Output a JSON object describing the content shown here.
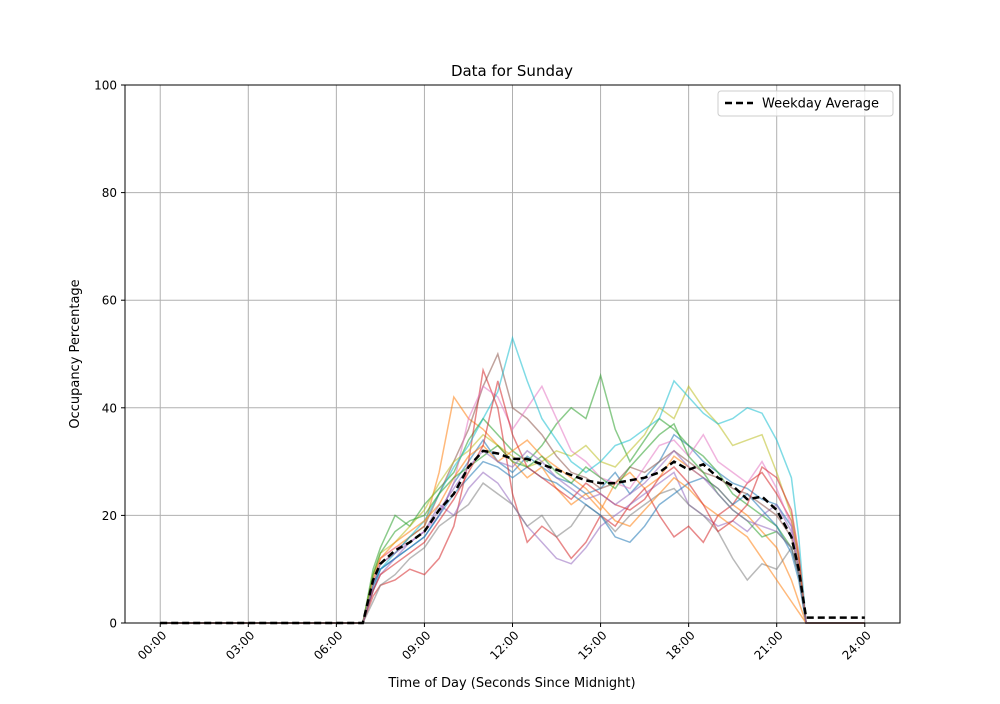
{
  "chart_data": {
    "type": "line",
    "title": "Data for Sunday",
    "xlabel": "Time of Day (Seconds Since Midnight)",
    "ylabel": "Occupancy Percentage",
    "xlim_hours": [
      -1.2,
      25.2
    ],
    "ylim": [
      0,
      100
    ],
    "x_ticks": [
      "00:00",
      "03:00",
      "06:00",
      "09:00",
      "12:00",
      "15:00",
      "18:00",
      "21:00",
      "24:00"
    ],
    "y_ticks": [
      0,
      20,
      40,
      60,
      80,
      100
    ],
    "grid": true,
    "legend": {
      "placement": "top-right",
      "entries": [
        "Weekday Average"
      ]
    },
    "x_hours": [
      0,
      6.9,
      7.25,
      7.5,
      8,
      8.5,
      9,
      9.5,
      10,
      10.5,
      11,
      11.5,
      12,
      12.5,
      13,
      13.5,
      14,
      14.5,
      15,
      15.5,
      16,
      16.5,
      17,
      17.5,
      18,
      18.5,
      19,
      19.5,
      20,
      20.5,
      21,
      21.5,
      21.75,
      22,
      24
    ],
    "average": {
      "name": "Weekday Average",
      "color": "#000000",
      "values": [
        0,
        0,
        8,
        11,
        13.5,
        15,
        17,
        21,
        24,
        29,
        32,
        31.5,
        30.5,
        30.5,
        29.5,
        28.5,
        27.5,
        26.5,
        26,
        26,
        26.5,
        27,
        28,
        30,
        28.5,
        29.5,
        27,
        25.5,
        23,
        23.5,
        21,
        16,
        10,
        1,
        1
      ]
    },
    "series": [
      {
        "color": "#1f77b4",
        "values": [
          0,
          0,
          7,
          10,
          12,
          14,
          16,
          20,
          26,
          30,
          34,
          30,
          28,
          31,
          29,
          27,
          26,
          24,
          25,
          28,
          24,
          27,
          30,
          35,
          33,
          30,
          28,
          26,
          25,
          23,
          22,
          18,
          11,
          0,
          0
        ]
      },
      {
        "color": "#ff7f0e",
        "values": [
          0,
          0,
          9,
          12,
          14,
          16,
          18,
          28,
          42,
          38,
          36,
          33,
          30,
          27,
          29,
          25,
          22,
          24,
          21,
          26,
          28,
          25,
          27,
          31,
          29,
          27,
          25,
          22,
          20,
          17,
          14,
          8,
          4,
          0,
          0
        ]
      },
      {
        "color": "#2ca02c",
        "values": [
          0,
          0,
          10,
          14,
          20,
          18,
          22,
          25,
          28,
          34,
          38,
          35,
          32,
          30,
          33,
          37,
          40,
          38,
          46,
          36,
          30,
          34,
          38,
          36,
          33,
          31,
          28,
          24,
          22,
          20,
          18,
          14,
          9,
          0,
          0
        ]
      },
      {
        "color": "#d62728",
        "values": [
          0,
          0,
          5,
          7,
          8,
          10,
          9,
          12,
          18,
          30,
          47,
          40,
          24,
          15,
          18,
          16,
          12,
          15,
          20,
          18,
          22,
          25,
          20,
          16,
          18,
          15,
          20,
          22,
          26,
          28,
          24,
          19,
          12,
          0,
          0
        ]
      },
      {
        "color": "#9467bd",
        "values": [
          0,
          0,
          6,
          9,
          12,
          15,
          17,
          22,
          20,
          25,
          28,
          26,
          22,
          18,
          15,
          12,
          11,
          14,
          18,
          20,
          22,
          24,
          26,
          28,
          22,
          20,
          18,
          19,
          17,
          20,
          22,
          17,
          10,
          0,
          0
        ]
      },
      {
        "color": "#8c564b",
        "values": [
          0,
          0,
          7,
          11,
          13,
          16,
          18,
          24,
          30,
          36,
          44,
          50,
          40,
          38,
          35,
          31,
          28,
          27,
          25,
          26,
          29,
          28,
          30,
          32,
          30,
          28,
          27,
          25,
          24,
          22,
          20,
          16,
          10,
          0,
          0
        ]
      },
      {
        "color": "#e377c2",
        "values": [
          0,
          0,
          8,
          12,
          14,
          15,
          17,
          20,
          26,
          38,
          44,
          42,
          36,
          40,
          44,
          38,
          32,
          30,
          27,
          26,
          25,
          29,
          33,
          34,
          31,
          35,
          30,
          28,
          26,
          30,
          25,
          18,
          11,
          0,
          0
        ]
      },
      {
        "color": "#7f7f7f",
        "values": [
          0,
          0,
          4,
          7,
          9,
          12,
          14,
          18,
          20,
          22,
          26,
          24,
          22,
          18,
          20,
          16,
          18,
          22,
          20,
          17,
          20,
          22,
          24,
          25,
          22,
          20,
          17,
          12,
          8,
          11,
          10,
          14,
          9,
          0,
          0
        ]
      },
      {
        "color": "#bcbd22",
        "values": [
          0,
          0,
          9,
          13,
          15,
          18,
          21,
          26,
          30,
          32,
          35,
          33,
          31,
          29,
          30,
          32,
          31,
          33,
          30,
          29,
          32,
          35,
          40,
          38,
          44,
          40,
          37,
          33,
          34,
          35,
          28,
          20,
          12,
          0,
          0
        ]
      },
      {
        "color": "#17becf",
        "values": [
          0,
          0,
          7,
          10,
          13,
          16,
          19,
          24,
          29,
          33,
          38,
          43,
          53,
          45,
          38,
          34,
          30,
          28,
          30,
          33,
          34,
          36,
          38,
          45,
          42,
          39,
          37,
          38,
          40,
          39,
          34,
          27,
          16,
          0,
          0
        ]
      },
      {
        "color": "#1f77b4",
        "values": [
          0,
          0,
          6,
          10,
          12,
          14,
          16,
          20,
          24,
          27,
          30,
          29,
          27,
          29,
          27,
          26,
          24,
          22,
          20,
          16,
          15,
          18,
          22,
          24,
          26,
          27,
          25,
          22,
          24,
          21,
          18,
          13,
          8,
          0,
          0
        ]
      },
      {
        "color": "#ff7f0e",
        "values": [
          0,
          0,
          8,
          12,
          15,
          17,
          19,
          22,
          27,
          31,
          33,
          30,
          32,
          34,
          31,
          29,
          27,
          25,
          22,
          19,
          18,
          21,
          24,
          27,
          25,
          22,
          20,
          18,
          16,
          12,
          8,
          4,
          2,
          0,
          0
        ]
      },
      {
        "color": "#2ca02c",
        "values": [
          0,
          0,
          9,
          13,
          17,
          19,
          20,
          24,
          27,
          29,
          31,
          33,
          30,
          29,
          31,
          28,
          26,
          29,
          27,
          25,
          29,
          32,
          35,
          37,
          31,
          28,
          24,
          21,
          19,
          16,
          17,
          14,
          9,
          0,
          0
        ]
      },
      {
        "color": "#d62728",
        "values": [
          0,
          0,
          6,
          9,
          11,
          13,
          15,
          19,
          23,
          28,
          33,
          45,
          35,
          29,
          27,
          25,
          23,
          26,
          24,
          22,
          21,
          23,
          27,
          29,
          26,
          22,
          17,
          19,
          22,
          29,
          27,
          21,
          13,
          0,
          0
        ]
      },
      {
        "color": "#9467bd",
        "values": [
          0,
          0,
          7,
          11,
          13,
          15,
          17,
          21,
          25,
          29,
          32,
          30,
          29,
          32,
          30,
          27,
          25,
          23,
          24,
          22,
          24,
          26,
          29,
          32,
          29,
          27,
          24,
          21,
          19,
          18,
          17,
          14,
          9,
          0,
          0
        ]
      }
    ]
  }
}
